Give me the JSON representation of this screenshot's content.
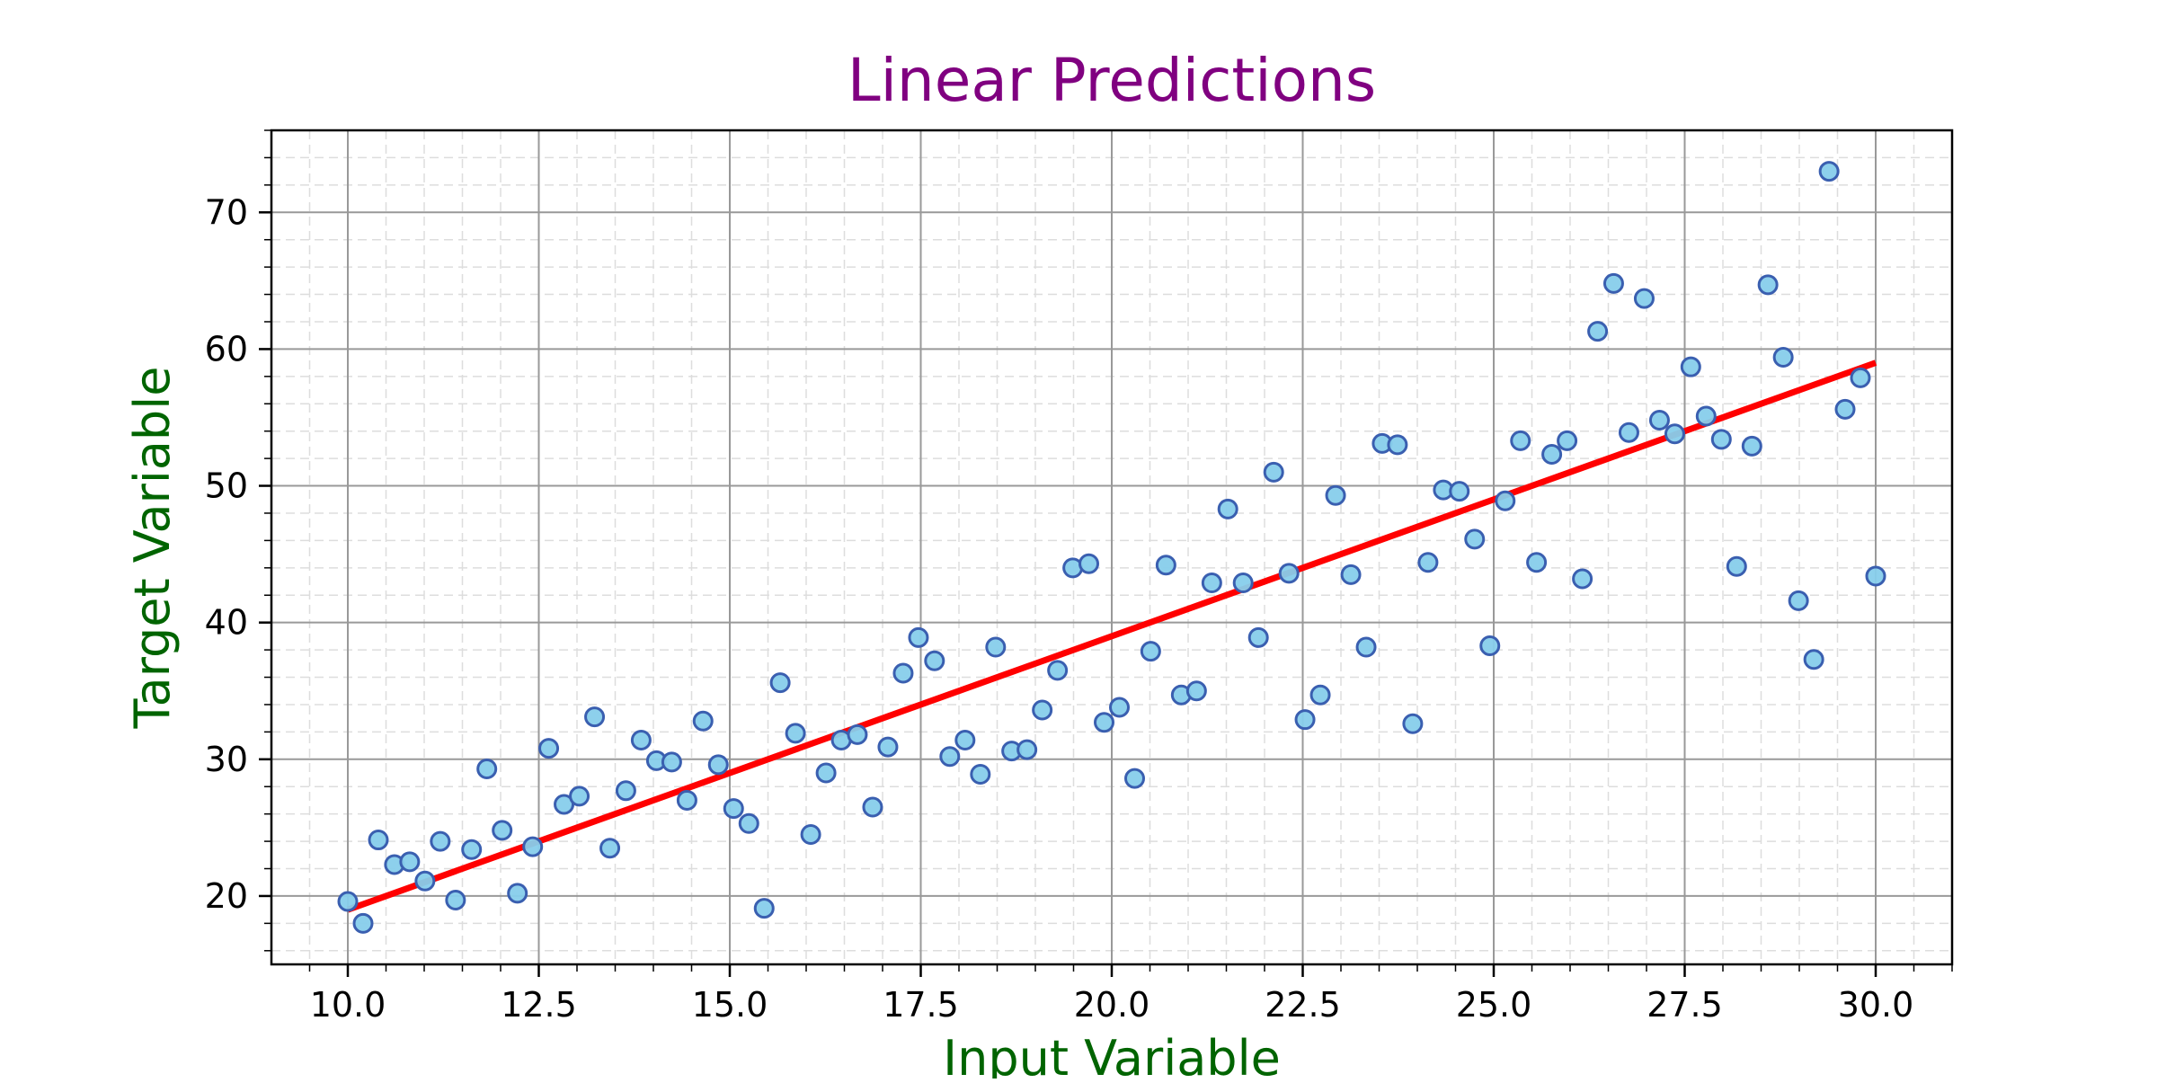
{
  "chart_data": {
    "type": "scatter",
    "title": "Linear Predictions",
    "xlabel": "Input Variable",
    "ylabel": "Target Variable",
    "xlim": [
      9.0,
      31.0
    ],
    "ylim": [
      15.0,
      76.0
    ],
    "x_ticks": [
      10.0,
      12.5,
      15.0,
      17.5,
      20.0,
      22.5,
      25.0,
      27.5,
      30.0
    ],
    "x_tick_labels": [
      "10.0",
      "12.5",
      "15.0",
      "17.5",
      "20.0",
      "22.5",
      "25.0",
      "27.5",
      "30.0"
    ],
    "y_ticks": [
      20,
      30,
      40,
      50,
      60,
      70
    ],
    "y_tick_labels": [
      "20",
      "30",
      "40",
      "50",
      "60",
      "70"
    ],
    "grid": true,
    "legend": "none",
    "colors": {
      "title": "#800080",
      "axis_label": "#006400",
      "points_fill": "#87CEEB",
      "points_edge": "#3A5FB0",
      "line": "#FF0000",
      "grid_major": "#999999",
      "grid_minor": "#dddddd"
    },
    "series": [
      {
        "type": "scatter",
        "x": [
          10.0,
          10.2,
          10.4,
          10.61,
          10.81,
          11.01,
          11.21,
          11.41,
          11.62,
          11.82,
          12.02,
          12.22,
          12.42,
          12.63,
          12.83,
          13.03,
          13.23,
          13.43,
          13.64,
          13.84,
          14.04,
          14.24,
          14.44,
          14.65,
          14.85,
          15.05,
          15.25,
          15.45,
          15.66,
          15.86,
          16.06,
          16.26,
          16.46,
          16.67,
          16.87,
          17.07,
          17.27,
          17.47,
          17.68,
          17.88,
          18.08,
          18.28,
          18.48,
          18.69,
          18.89,
          19.09,
          19.29,
          19.49,
          19.7,
          19.9,
          20.1,
          20.3,
          20.51,
          20.71,
          20.91,
          21.11,
          21.31,
          21.52,
          21.72,
          21.92,
          22.12,
          22.32,
          22.53,
          22.73,
          22.93,
          23.13,
          23.33,
          23.54,
          23.74,
          23.94,
          24.14,
          24.34,
          24.55,
          24.75,
          24.95,
          25.15,
          25.35,
          25.56,
          25.76,
          25.96,
          26.16,
          26.36,
          26.57,
          26.77,
          26.97,
          27.17,
          27.37,
          27.58,
          27.78,
          27.98,
          28.18,
          28.38,
          28.59,
          28.79,
          28.99,
          29.19,
          29.39,
          29.6,
          29.8,
          30.0
        ],
        "y": [
          19.6,
          18.0,
          24.1,
          22.3,
          22.5,
          21.1,
          24.0,
          19.7,
          23.4,
          29.3,
          24.8,
          20.2,
          23.6,
          30.8,
          26.7,
          27.3,
          33.1,
          23.5,
          27.7,
          31.4,
          29.9,
          29.8,
          27.0,
          32.8,
          29.6,
          26.4,
          25.3,
          19.1,
          35.6,
          31.9,
          24.5,
          29.0,
          31.4,
          31.8,
          26.5,
          30.9,
          36.3,
          38.9,
          37.2,
          30.2,
          31.4,
          28.9,
          38.2,
          30.6,
          30.7,
          33.6,
          36.5,
          44.0,
          44.3,
          32.7,
          33.8,
          28.6,
          37.9,
          44.2,
          34.7,
          35.0,
          42.9,
          48.3,
          42.9,
          38.9,
          51.0,
          43.6,
          32.9,
          34.7,
          49.3,
          43.5,
          38.2,
          53.1,
          53.0,
          32.6,
          44.4,
          49.7,
          49.6,
          46.1,
          38.3,
          48.9,
          53.3,
          44.4,
          52.3,
          53.3,
          43.2,
          61.3,
          64.8,
          53.9,
          63.7,
          54.8,
          53.8,
          58.7,
          55.1,
          53.4,
          44.1,
          52.9,
          64.7,
          59.4,
          41.6,
          37.3,
          73.0,
          55.6,
          57.9,
          43.4
        ]
      },
      {
        "type": "line",
        "x": [
          10.0,
          30.0
        ],
        "y": [
          19.0,
          59.0
        ]
      }
    ]
  }
}
